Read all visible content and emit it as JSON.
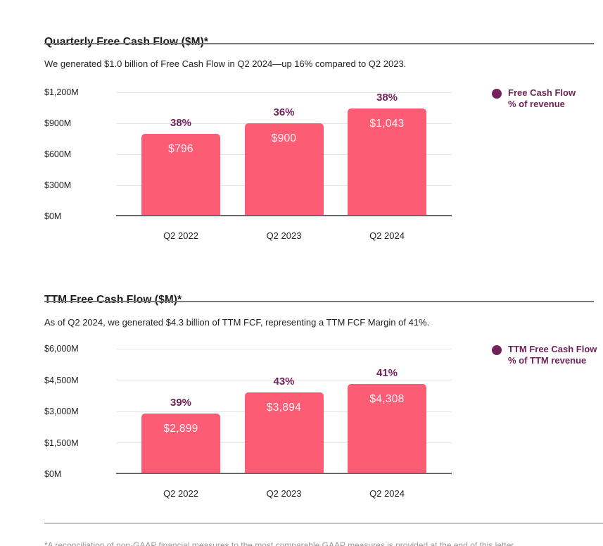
{
  "colors": {
    "bar_pink": "#fd5c75",
    "accent_purple": "#71225b",
    "text_dark": "#1c1c1e",
    "gridline_gray": "#e4e4e8",
    "axis_gray": "#67676c",
    "footnote_gray": "#97979c"
  },
  "footnote": "*A reconciliation of non-GAAP financial measures to the most comparable GAAP measures is provided at the end of this letter.",
  "chart_data": [
    {
      "type": "bar",
      "title": "Quarterly Free Cash Flow ($M)*",
      "subtitle": "We generated $1.0 billion of Free Cash Flow in Q2 2024—up 16% compared to Q2 2023.",
      "categories": [
        "Q2 2022",
        "Q2 2023",
        "Q2 2024"
      ],
      "values": [
        796,
        900,
        1043
      ],
      "bar_value_labels": [
        "$796",
        "$900",
        "$1,043"
      ],
      "pct_labels": [
        "38%",
        "36%",
        "38%"
      ],
      "y_ticks": [
        "$1,200M",
        "$900M",
        "$600M",
        "$300M",
        "$0M"
      ],
      "ylim": [
        0,
        1200
      ],
      "grid": true,
      "legend": {
        "position": "right",
        "line1": "Free Cash Flow",
        "line2": "% of revenue"
      }
    },
    {
      "type": "bar",
      "title": "TTM Free Cash Flow ($M)*",
      "subtitle": "As of Q2 2024, we generated $4.3 billion of TTM FCF, representing a TTM FCF Margin of 41%.",
      "categories": [
        "Q2 2022",
        "Q2 2023",
        "Q2 2024"
      ],
      "values": [
        2899,
        3894,
        4308
      ],
      "bar_value_labels": [
        "$2,899",
        "$3,894",
        "$4,308"
      ],
      "pct_labels": [
        "39%",
        "43%",
        "41%"
      ],
      "y_ticks": [
        "$6,000M",
        "$4,500M",
        "$3,000M",
        "$1,500M",
        "$0M"
      ],
      "ylim": [
        0,
        6000
      ],
      "grid": true,
      "legend": {
        "position": "right",
        "line1": "TTM Free Cash Flow",
        "line2": "% of TTM revenue"
      }
    }
  ]
}
